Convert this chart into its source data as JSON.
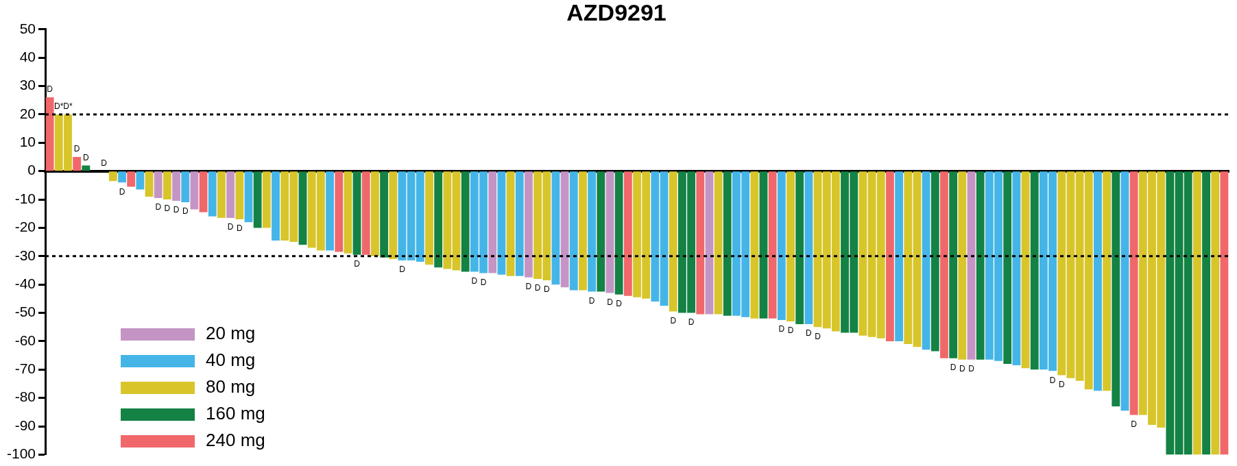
{
  "chart_data": {
    "type": "bar",
    "title": "AZD9291",
    "categories": [
      null,
      null,
      null,
      null,
      null,
      null,
      null,
      null,
      null,
      null,
      null,
      null,
      null,
      null,
      null,
      null,
      null,
      null,
      null,
      null,
      null,
      null,
      null,
      null,
      null,
      null,
      null,
      null,
      null,
      null,
      null,
      null,
      null,
      null,
      null,
      null,
      null,
      null,
      null,
      null,
      null,
      null,
      null,
      null,
      null,
      null,
      null,
      null,
      null,
      null,
      null,
      null,
      null,
      null,
      null,
      null,
      null,
      null,
      null,
      null,
      null,
      null,
      null,
      null,
      null,
      null,
      null,
      null,
      null,
      null,
      null,
      null,
      null,
      null,
      null,
      null,
      null,
      null,
      null,
      null,
      null,
      null,
      null,
      null,
      null,
      null,
      null,
      null,
      null,
      null,
      null,
      null,
      null,
      null,
      null,
      null,
      null,
      null,
      null,
      null,
      null,
      null,
      null,
      null,
      null,
      null,
      null,
      null,
      null,
      null,
      null,
      null,
      null,
      null,
      null,
      null,
      null,
      null,
      null,
      null,
      null,
      null,
      null,
      null,
      null,
      null,
      null,
      null,
      null,
      null,
      null
    ],
    "series": [
      {
        "name": "20 mg",
        "color": "#c495c4",
        "values": [
          null,
          null,
          null,
          null,
          null,
          null,
          null,
          null,
          null,
          null,
          null,
          null,
          -9.5,
          null,
          -10.5,
          null,
          -13.5,
          null,
          null,
          null,
          -16.5,
          null,
          null,
          null,
          null,
          null,
          null,
          null,
          null,
          null,
          null,
          null,
          null,
          null,
          null,
          null,
          null,
          null,
          null,
          null,
          null,
          null,
          null,
          null,
          null,
          null,
          null,
          null,
          null,
          -36,
          null,
          null,
          null,
          -37.5,
          null,
          null,
          null,
          -41,
          null,
          null,
          null,
          null,
          -43,
          null,
          null,
          null,
          null,
          null,
          null,
          null,
          null,
          null,
          null,
          -50.5,
          null,
          null,
          null,
          null,
          null,
          null,
          null,
          null,
          null,
          null,
          null,
          null,
          null,
          null,
          null,
          null,
          null,
          null,
          null,
          null,
          null,
          null,
          null,
          null,
          null,
          null,
          null,
          null,
          -66.5,
          null,
          null,
          null,
          null,
          null,
          null,
          null,
          null,
          null,
          null,
          null,
          null,
          null,
          null,
          null,
          null,
          null,
          null,
          null,
          null,
          null,
          null,
          null,
          null,
          null,
          null,
          null,
          null
        ],
        "value_labels": [
          null,
          null,
          null,
          null,
          null,
          null,
          null,
          null,
          null,
          null,
          null,
          null,
          "D",
          null,
          "D",
          null,
          null,
          null,
          null,
          null,
          "D",
          null,
          null,
          null,
          null,
          null,
          null,
          null,
          null,
          null,
          null,
          null,
          null,
          null,
          null,
          null,
          null,
          null,
          null,
          null,
          null,
          null,
          null,
          null,
          null,
          null,
          null,
          null,
          null,
          null,
          null,
          null,
          null,
          "D",
          null,
          null,
          null,
          null,
          null,
          null,
          null,
          null,
          "D",
          null,
          null,
          null,
          null,
          null,
          null,
          null,
          null,
          null,
          null,
          null,
          null,
          null,
          null,
          null,
          null,
          null,
          null,
          null,
          null,
          null,
          null,
          null,
          null,
          null,
          null,
          null,
          null,
          null,
          null,
          null,
          null,
          null,
          null,
          null,
          null,
          null,
          null,
          null,
          "D",
          null,
          null,
          null,
          null,
          null,
          null,
          null,
          null,
          null,
          null,
          null,
          null,
          null,
          null,
          null,
          null,
          null,
          null,
          null,
          null,
          null,
          null,
          null,
          null,
          null,
          null,
          null,
          null
        ]
      },
      {
        "name": "40 mg",
        "color": "#45b5e8",
        "values": [
          null,
          null,
          null,
          null,
          null,
          null,
          null,
          null,
          -4,
          null,
          -6.5,
          null,
          null,
          null,
          null,
          -11,
          null,
          null,
          -16,
          null,
          null,
          null,
          -18,
          null,
          null,
          -24.5,
          null,
          null,
          null,
          null,
          null,
          -28,
          null,
          null,
          null,
          null,
          null,
          null,
          null,
          -31.5,
          -31.5,
          -32,
          null,
          null,
          null,
          null,
          null,
          -35.5,
          -36,
          null,
          -36.5,
          null,
          -37,
          null,
          null,
          null,
          -40,
          null,
          -42,
          null,
          -42.5,
          null,
          null,
          null,
          null,
          null,
          null,
          -46,
          -47.5,
          null,
          null,
          null,
          null,
          null,
          null,
          null,
          -51,
          -51.5,
          null,
          null,
          null,
          -52.5,
          null,
          null,
          -54,
          null,
          null,
          null,
          null,
          null,
          null,
          null,
          null,
          null,
          -60,
          null,
          null,
          -63,
          null,
          null,
          null,
          null,
          null,
          null,
          -66.5,
          -67,
          null,
          -68.5,
          null,
          null,
          -70,
          -70.5,
          null,
          null,
          null,
          null,
          -77.5,
          null,
          null,
          -84.5,
          null,
          null,
          null,
          null,
          null,
          null,
          null,
          null,
          null,
          null,
          null
        ],
        "value_labels": [
          null,
          null,
          null,
          null,
          null,
          null,
          null,
          null,
          "D",
          null,
          null,
          null,
          null,
          null,
          null,
          "D",
          null,
          null,
          null,
          null,
          null,
          null,
          null,
          null,
          null,
          null,
          null,
          null,
          null,
          null,
          null,
          null,
          null,
          null,
          null,
          null,
          null,
          null,
          null,
          "D",
          null,
          null,
          null,
          null,
          null,
          null,
          null,
          "D",
          "D",
          null,
          null,
          null,
          null,
          null,
          null,
          null,
          null,
          null,
          null,
          null,
          "D",
          null,
          null,
          null,
          null,
          null,
          null,
          null,
          null,
          null,
          null,
          null,
          null,
          null,
          null,
          null,
          null,
          null,
          null,
          null,
          null,
          "D",
          null,
          null,
          "D",
          null,
          null,
          null,
          null,
          null,
          null,
          null,
          null,
          null,
          null,
          null,
          null,
          null,
          null,
          null,
          null,
          null,
          null,
          null,
          null,
          null,
          null,
          null,
          null,
          null,
          null,
          "D",
          null,
          null,
          null,
          null,
          null,
          null,
          null,
          null,
          null,
          null,
          null,
          null,
          null,
          null,
          null,
          null,
          null,
          null,
          null
        ]
      },
      {
        "name": "80 mg",
        "color": "#d8c52a",
        "values": [
          null,
          20,
          20,
          null,
          null,
          0,
          0,
          -3.5,
          null,
          null,
          null,
          -9,
          null,
          -10,
          null,
          null,
          null,
          null,
          null,
          -16.5,
          null,
          -17,
          null,
          null,
          -20,
          null,
          -24.5,
          -25,
          null,
          -27,
          -28,
          null,
          null,
          -29,
          null,
          null,
          -30,
          null,
          -31,
          null,
          null,
          null,
          -33,
          null,
          -34.5,
          -35,
          null,
          null,
          null,
          null,
          null,
          -37,
          null,
          null,
          -38,
          -38.5,
          null,
          null,
          null,
          -42,
          null,
          null,
          null,
          null,
          null,
          -44.5,
          -45,
          null,
          null,
          -49.5,
          null,
          null,
          null,
          null,
          -50.5,
          null,
          null,
          null,
          -52,
          null,
          null,
          null,
          -53,
          null,
          null,
          -55,
          -55.5,
          -56.5,
          null,
          null,
          -58,
          -58.5,
          -59,
          null,
          null,
          -61,
          -62,
          null,
          null,
          null,
          null,
          -66.5,
          null,
          null,
          null,
          null,
          null,
          null,
          -69.5,
          null,
          null,
          null,
          -72,
          -73,
          -74,
          -77,
          null,
          -77.5,
          null,
          null,
          null,
          -86,
          -89.5,
          -90.5,
          null,
          null,
          null,
          -100,
          null,
          -100,
          null
        ],
        "value_labels": [
          null,
          "D*",
          "D*",
          null,
          null,
          null,
          "D",
          null,
          null,
          null,
          null,
          null,
          null,
          "D",
          null,
          null,
          null,
          null,
          null,
          null,
          null,
          "D",
          null,
          null,
          null,
          null,
          null,
          null,
          null,
          null,
          null,
          null,
          null,
          null,
          null,
          null,
          null,
          null,
          null,
          null,
          null,
          null,
          null,
          null,
          null,
          null,
          null,
          null,
          null,
          null,
          null,
          null,
          null,
          null,
          "D",
          "D",
          null,
          null,
          null,
          null,
          null,
          null,
          null,
          null,
          null,
          null,
          null,
          null,
          null,
          "D",
          null,
          null,
          null,
          null,
          null,
          null,
          null,
          null,
          null,
          null,
          null,
          null,
          "D",
          null,
          null,
          "D",
          null,
          null,
          null,
          null,
          null,
          null,
          null,
          null,
          null,
          null,
          null,
          null,
          null,
          null,
          null,
          "D",
          null,
          null,
          null,
          null,
          null,
          null,
          null,
          null,
          null,
          null,
          "D",
          null,
          null,
          null,
          null,
          null,
          null,
          null,
          null,
          null,
          null,
          null,
          null,
          null,
          null,
          null,
          null,
          null,
          null
        ]
      },
      {
        "name": "160 mg",
        "color": "#138244",
        "values": [
          null,
          null,
          null,
          null,
          2,
          null,
          null,
          null,
          null,
          null,
          null,
          null,
          null,
          null,
          null,
          null,
          null,
          null,
          null,
          null,
          null,
          null,
          null,
          -20,
          null,
          null,
          null,
          null,
          -26,
          null,
          null,
          null,
          null,
          null,
          -29.5,
          null,
          null,
          -30.5,
          null,
          null,
          null,
          null,
          null,
          -34,
          null,
          null,
          -35.5,
          null,
          null,
          null,
          null,
          null,
          null,
          null,
          null,
          null,
          null,
          null,
          null,
          null,
          null,
          -42.5,
          null,
          -43.5,
          null,
          null,
          null,
          null,
          null,
          null,
          -50,
          -50,
          null,
          null,
          null,
          -51,
          null,
          null,
          null,
          -52,
          null,
          null,
          null,
          -54,
          null,
          null,
          null,
          null,
          -57,
          -57,
          null,
          null,
          null,
          null,
          null,
          null,
          null,
          null,
          -63.5,
          null,
          -66,
          null,
          null,
          -66.5,
          null,
          null,
          -68,
          null,
          null,
          -70,
          null,
          null,
          null,
          null,
          null,
          null,
          null,
          null,
          -83,
          null,
          null,
          null,
          null,
          null,
          -100,
          -100,
          -100,
          null,
          -100,
          null,
          null
        ],
        "value_labels": [
          null,
          null,
          null,
          null,
          "D",
          null,
          null,
          null,
          null,
          null,
          null,
          null,
          null,
          null,
          null,
          null,
          null,
          null,
          null,
          null,
          null,
          null,
          null,
          null,
          null,
          null,
          null,
          null,
          null,
          null,
          null,
          null,
          null,
          null,
          "D",
          null,
          null,
          null,
          null,
          null,
          null,
          null,
          null,
          null,
          null,
          null,
          null,
          null,
          null,
          null,
          null,
          null,
          null,
          null,
          null,
          null,
          null,
          null,
          null,
          null,
          null,
          null,
          null,
          "D",
          null,
          null,
          null,
          null,
          null,
          null,
          null,
          "D",
          null,
          null,
          null,
          null,
          null,
          null,
          null,
          null,
          null,
          null,
          null,
          null,
          null,
          null,
          null,
          null,
          null,
          null,
          null,
          null,
          null,
          null,
          null,
          null,
          null,
          null,
          null,
          null,
          "D",
          null,
          null,
          null,
          null,
          null,
          null,
          null,
          null,
          null,
          null,
          null,
          null,
          null,
          null,
          null,
          null,
          null,
          null,
          null,
          null,
          null,
          null,
          null,
          null,
          null,
          null,
          null,
          null,
          null,
          null
        ]
      },
      {
        "name": "240 mg",
        "color": "#f0686a",
        "values": [
          26,
          null,
          null,
          5,
          null,
          null,
          null,
          null,
          null,
          -5.5,
          null,
          null,
          null,
          null,
          null,
          null,
          null,
          -14.5,
          null,
          null,
          null,
          null,
          null,
          null,
          null,
          null,
          null,
          null,
          null,
          null,
          null,
          null,
          -28.5,
          null,
          null,
          -29.5,
          null,
          null,
          null,
          null,
          null,
          null,
          null,
          null,
          null,
          null,
          null,
          null,
          null,
          null,
          null,
          null,
          null,
          null,
          null,
          null,
          null,
          null,
          null,
          null,
          null,
          null,
          null,
          null,
          -44,
          null,
          null,
          null,
          null,
          null,
          null,
          null,
          -50.5,
          null,
          null,
          null,
          null,
          null,
          null,
          null,
          -52,
          null,
          null,
          null,
          null,
          null,
          null,
          null,
          null,
          null,
          null,
          null,
          null,
          -60,
          null,
          null,
          null,
          null,
          null,
          -66,
          null,
          null,
          null,
          null,
          null,
          null,
          null,
          null,
          null,
          null,
          null,
          null,
          null,
          null,
          null,
          null,
          null,
          null,
          null,
          null,
          -86,
          null,
          null,
          null,
          null,
          null,
          null,
          null,
          null,
          null,
          -100
        ],
        "value_labels": [
          "D",
          null,
          null,
          "D",
          null,
          null,
          null,
          null,
          null,
          null,
          null,
          null,
          null,
          null,
          null,
          null,
          null,
          null,
          null,
          null,
          null,
          null,
          null,
          null,
          null,
          null,
          null,
          null,
          null,
          null,
          null,
          null,
          null,
          null,
          null,
          null,
          null,
          null,
          null,
          null,
          null,
          null,
          null,
          null,
          null,
          null,
          null,
          null,
          null,
          null,
          null,
          null,
          null,
          null,
          null,
          null,
          null,
          null,
          null,
          null,
          null,
          null,
          null,
          null,
          null,
          null,
          null,
          null,
          null,
          null,
          null,
          null,
          null,
          null,
          null,
          null,
          null,
          null,
          null,
          null,
          null,
          null,
          null,
          null,
          null,
          null,
          null,
          null,
          null,
          null,
          null,
          null,
          null,
          null,
          null,
          null,
          null,
          null,
          null,
          null,
          null,
          null,
          null,
          null,
          null,
          null,
          null,
          null,
          null,
          null,
          null,
          null,
          null,
          null,
          null,
          null,
          null,
          null,
          null,
          null,
          "D",
          null,
          null,
          null,
          null,
          null,
          null,
          null,
          null,
          null,
          null
        ]
      }
    ],
    "ylim": [
      -100,
      50
    ],
    "yticks": [
      -100,
      -90,
      -80,
      -70,
      -60,
      -50,
      -40,
      -30,
      -20,
      -10,
      0,
      10,
      20,
      30,
      40,
      50
    ],
    "tick_labels": "y",
    "grid": false,
    "legend": "bottom left",
    "ref_lines": [
      {
        "axis": "y",
        "value": 20,
        "color": "#000000",
        "line_style": "dotted"
      },
      {
        "axis": "y",
        "value": -30,
        "color": "#000000",
        "line_style": "dotted"
      }
    ]
  }
}
